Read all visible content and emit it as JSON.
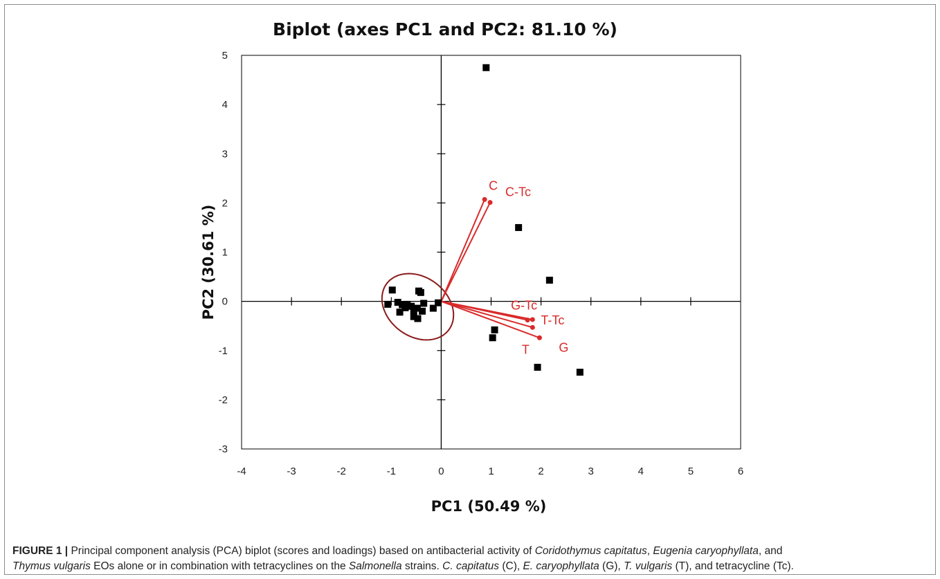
{
  "chart_data": {
    "type": "scatter",
    "title": "Biplot (axes PC1 and PC2: 81.10 %)",
    "xlabel": "PC1 (50.49 %)",
    "ylabel": "PC2 (30.61 %)",
    "xlim": [
      -4,
      6
    ],
    "ylim": [
      -3,
      5
    ],
    "x_ticks": [
      "-4",
      "-3",
      "-2",
      "-1",
      "0",
      "1",
      "2",
      "3",
      "4",
      "5",
      "6"
    ],
    "y_ticks": [
      "-3",
      "-2",
      "-1",
      "0",
      "1",
      "2",
      "3",
      "4",
      "5"
    ],
    "grid": false,
    "scores": [
      {
        "x": 0.9,
        "y": 4.75
      },
      {
        "x": 1.55,
        "y": 1.5
      },
      {
        "x": 2.17,
        "y": 0.43
      },
      {
        "x": 1.07,
        "y": -0.58
      },
      {
        "x": 1.03,
        "y": -0.74
      },
      {
        "x": 1.93,
        "y": -1.34
      },
      {
        "x": 2.78,
        "y": -1.44
      },
      {
        "x": -0.98,
        "y": 0.23
      },
      {
        "x": -0.45,
        "y": 0.21
      },
      {
        "x": -0.41,
        "y": 0.18
      },
      {
        "x": -1.07,
        "y": -0.06
      },
      {
        "x": -0.87,
        "y": -0.02
      },
      {
        "x": -0.78,
        "y": -0.07
      },
      {
        "x": -0.68,
        "y": -0.06
      },
      {
        "x": -0.6,
        "y": -0.1
      },
      {
        "x": -0.72,
        "y": -0.13
      },
      {
        "x": -0.83,
        "y": -0.22
      },
      {
        "x": -0.55,
        "y": -0.18
      },
      {
        "x": -0.48,
        "y": -0.14
      },
      {
        "x": -0.38,
        "y": -0.2
      },
      {
        "x": -0.55,
        "y": -0.31
      },
      {
        "x": -0.47,
        "y": -0.35
      },
      {
        "x": -0.35,
        "y": -0.04
      },
      {
        "x": -0.16,
        "y": -0.14
      },
      {
        "x": -0.06,
        "y": -0.03
      }
    ],
    "loadings": [
      {
        "name": "C",
        "x": 0.87,
        "y": 2.07
      },
      {
        "name": "C-Tc",
        "x": 0.98,
        "y": 2.01
      },
      {
        "name": "G-Tc",
        "x": 1.73,
        "y": -0.38
      },
      {
        "name": "T-Tc",
        "x": 1.83,
        "y": -0.37
      },
      {
        "name": "T",
        "x": 1.83,
        "y": -0.53
      },
      {
        "name": "G",
        "x": 1.97,
        "y": -0.74
      }
    ],
    "confidence_ellipse": {
      "center_x": -0.47,
      "center_y": -0.11,
      "semi_major": 0.78,
      "semi_minor": 0.6,
      "angle_deg": -38
    },
    "colors": {
      "scores": "#000000",
      "loadings": "#d92a2a",
      "ellipse": "#8b1a1a",
      "axes": "#000000"
    }
  },
  "caption": {
    "figure_label": "FIGURE 1 |",
    "text_1": " Principal component analysis (PCA) biplot (scores and loadings) based on antibacterial activity of ",
    "species_1": "Coridothymus capitatus",
    "sep_1": ", ",
    "species_2": "Eugenia caryophyllata",
    "sep_2": ", and ",
    "species_3": "Thymus vulgaris",
    "text_2": " EOs alone or in combination with tetracyclines on the ",
    "genus": "Salmonella",
    "text_3": " strains. ",
    "abbr_c": "C. capitatus",
    "code_c": " (C), ",
    "abbr_g": "E. caryophyllata",
    "code_g": " (G), ",
    "abbr_t": "T. vulgaris",
    "code_t": " (T), and tetracycline (Tc)."
  }
}
